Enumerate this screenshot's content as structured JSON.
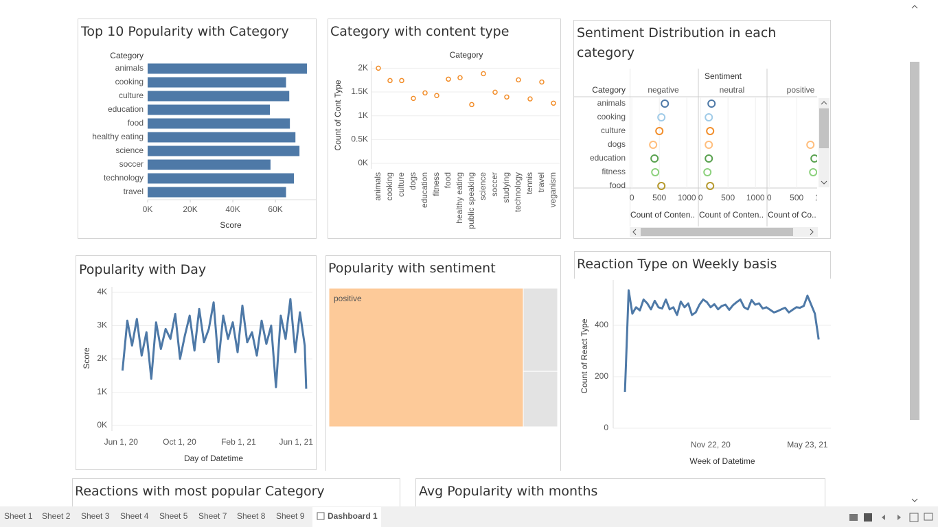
{
  "chart_data": [
    {
      "type": "hbar",
      "title": "Top 10 Popularity with Category",
      "category_label": "Category",
      "x_label": "Score",
      "categories": [
        "animals",
        "cooking",
        "culture",
        "education",
        "food",
        "healthy eating",
        "science",
        "soccer",
        "technology",
        "travel"
      ],
      "values": [
        74800,
        65000,
        66500,
        57400,
        66800,
        69400,
        71300,
        57700,
        68700,
        65000
      ],
      "color": "#4e79a7",
      "xlim": [
        0,
        79000
      ],
      "xticks": [
        {
          "value": 0,
          "label": "0K"
        },
        {
          "value": 20000,
          "label": "20K"
        },
        {
          "value": 40000,
          "label": "40K"
        },
        {
          "value": 60000,
          "label": "60K"
        }
      ]
    },
    {
      "type": "dot",
      "title": "Category  with content type",
      "category_label": "Category",
      "y_label": "Count of Cont Type",
      "categories": [
        "animals",
        "cooking",
        "culture",
        "dogs",
        "education",
        "fitness",
        "food",
        "healthy eating",
        "public speaking",
        "science",
        "soccer",
        "studying",
        "technology",
        "tennis",
        "travel",
        "veganism"
      ],
      "values": [
        2000,
        1740,
        1740,
        1365,
        1480,
        1425,
        1770,
        1800,
        1235,
        1885,
        1495,
        1395,
        1755,
        1355,
        1710,
        1265
      ],
      "color": "#f28e2b",
      "ylim": [
        0,
        2150
      ],
      "grid": true,
      "yticks": [
        {
          "value": 0,
          "label": "0K"
        },
        {
          "value": 500,
          "label": "0.5K"
        },
        {
          "value": 1000,
          "label": "1K"
        },
        {
          "value": 1500,
          "label": "1.5K"
        },
        {
          "value": 2000,
          "label": "2K"
        }
      ]
    },
    {
      "type": "facet_dot",
      "title": "Sentiment Distribution in each category",
      "column_label": "Sentiment",
      "category_label": "Category",
      "categories": [
        "animals",
        "cooking",
        "culture",
        "dogs",
        "education",
        "fitness",
        "food"
      ],
      "category_colors": [
        "#4e79a7",
        "#a0cbe8",
        "#f28e2b",
        "#ffbe7d",
        "#59a14f",
        "#8cd17d",
        "#b6992d"
      ],
      "series": [
        {
          "name": "negative",
          "x_label": "Count of Conten..",
          "values": [
            600,
            537,
            500,
            387,
            412,
            425,
            537
          ]
        },
        {
          "name": "neutral",
          "x_label": "Count of Conten..",
          "values": [
            200,
            150,
            175,
            150,
            150,
            125,
            175
          ]
        },
        {
          "name": "positive",
          "x_label": "Count of Co..",
          "values": [
            null,
            null,
            null,
            750,
            825,
            800,
            null
          ]
        }
      ],
      "xlim": [
        -40,
        1210
      ],
      "xticks": [
        0,
        500,
        1000
      ]
    },
    {
      "type": "line",
      "title": "Popularity with Day",
      "x_label": "Day of Datetime",
      "y_label": "Score",
      "color": "#4e79a7",
      "grid": true,
      "x": [
        "2020-06-04",
        "2020-06-14",
        "2020-06-24",
        "2020-07-04",
        "2020-07-14",
        "2020-07-24",
        "2020-08-03",
        "2020-08-13",
        "2020-08-23",
        "2020-09-02",
        "2020-09-12",
        "2020-09-22",
        "2020-10-02",
        "2020-10-12",
        "2020-10-22",
        "2020-11-01",
        "2020-11-11",
        "2020-11-21",
        "2020-12-01",
        "2020-12-11",
        "2020-12-21",
        "2020-12-31",
        "2021-01-10",
        "2021-01-20",
        "2021-01-30",
        "2021-02-09",
        "2021-02-19",
        "2021-03-01",
        "2021-03-11",
        "2021-03-21",
        "2021-03-31",
        "2021-04-10",
        "2021-04-20",
        "2021-04-30",
        "2021-05-10",
        "2021-05-20",
        "2021-05-30",
        "2021-06-09",
        "2021-06-19",
        "2021-06-22"
      ],
      "values": [
        1650,
        3150,
        2400,
        3200,
        2100,
        2800,
        1400,
        3100,
        2300,
        2900,
        2600,
        3350,
        2000,
        2700,
        3300,
        2250,
        3500,
        2500,
        2900,
        3700,
        1900,
        3300,
        2600,
        3100,
        2200,
        3600,
        2500,
        2800,
        2100,
        3150,
        2450,
        3000,
        1150,
        3300,
        2600,
        3800,
        2200,
        3400,
        2400,
        1100
      ],
      "xlim": [
        "2020-05-13",
        "2021-07-05"
      ],
      "ylim": [
        -165,
        4165
      ],
      "xticks": [
        {
          "value": "2020-06-01",
          "label": "Jun 1, 20"
        },
        {
          "value": "2020-10-01",
          "label": "Oct 1, 20"
        },
        {
          "value": "2021-02-01",
          "label": "Feb 1, 21"
        },
        {
          "value": "2021-06-01",
          "label": "Jun 1, 21"
        }
      ],
      "yticks": [
        {
          "value": 0,
          "label": "0K"
        },
        {
          "value": 1000,
          "label": "1K"
        },
        {
          "value": 2000,
          "label": "2K"
        },
        {
          "value": 3000,
          "label": "3K"
        },
        {
          "value": 4000,
          "label": "4K"
        }
      ]
    },
    {
      "type": "treemap",
      "title": "Popularity with sentiment",
      "categories": [
        "positive",
        null,
        null
      ],
      "values": [
        85,
        9,
        6
      ],
      "colors": [
        "#fdca99",
        "#e3e3e3",
        "#e3e3e3"
      ]
    },
    {
      "type": "line",
      "title": "Reaction Type on Weekly basis",
      "x_label": "Week of Datetime",
      "y_label": "Count of React Type",
      "color": "#4e79a7",
      "grid": true,
      "x": [
        "2020-06-14",
        "2020-06-21",
        "2020-06-28",
        "2020-07-05",
        "2020-07-12",
        "2020-07-19",
        "2020-07-26",
        "2020-08-02",
        "2020-08-09",
        "2020-08-16",
        "2020-08-23",
        "2020-08-30",
        "2020-09-06",
        "2020-09-13",
        "2020-09-20",
        "2020-09-27",
        "2020-10-04",
        "2020-10-11",
        "2020-10-18",
        "2020-10-25",
        "2020-11-01",
        "2020-11-08",
        "2020-11-15",
        "2020-11-22",
        "2020-11-29",
        "2020-12-06",
        "2020-12-13",
        "2020-12-20",
        "2020-12-27",
        "2021-01-03",
        "2021-01-10",
        "2021-01-17",
        "2021-01-24",
        "2021-01-31",
        "2021-02-07",
        "2021-02-14",
        "2021-02-21",
        "2021-02-28",
        "2021-03-07",
        "2021-03-14",
        "2021-03-21",
        "2021-03-28",
        "2021-04-04",
        "2021-04-11",
        "2021-04-18",
        "2021-04-25",
        "2021-05-02",
        "2021-05-09",
        "2021-05-16",
        "2021-05-23",
        "2021-05-30",
        "2021-06-06",
        "2021-06-13"
      ],
      "values": [
        141,
        536,
        445,
        470,
        458,
        500,
        485,
        462,
        495,
        470,
        465,
        500,
        462,
        470,
        440,
        492,
        470,
        485,
        440,
        450,
        480,
        500,
        490,
        470,
        482,
        462,
        475,
        480,
        460,
        478,
        490,
        500,
        470,
        462,
        498,
        480,
        485,
        465,
        470,
        460,
        450,
        455,
        462,
        468,
        450,
        460,
        470,
        468,
        475,
        515,
        480,
        445,
        345
      ],
      "xlim": [
        "2020-05-23",
        "2021-07-06"
      ],
      "ylim": [
        0,
        576
      ],
      "xticks": [
        {
          "value": "2020-11-22",
          "label": "Nov 22, 20"
        },
        {
          "value": "2021-05-23",
          "label": "May 23, 21"
        }
      ],
      "yticks": [
        0,
        200,
        400
      ]
    }
  ],
  "panels": [
    "Reactions with most popular Category",
    "Avg Popularity with months"
  ],
  "tabs": [
    "Sheet 1",
    "Sheet 2",
    "Sheet 3",
    "Sheet 4",
    "Sheet 5",
    "Sheet 7",
    "Sheet 8",
    "Sheet 9",
    "Dashboard 1"
  ]
}
